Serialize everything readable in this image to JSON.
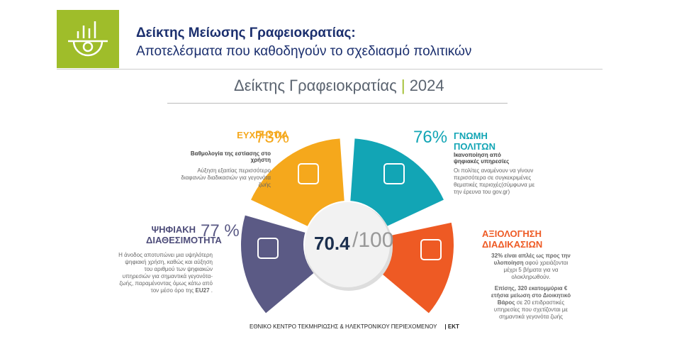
{
  "header": {
    "title": "Δείκτης Μείωσης Γραφειοκρατίας:",
    "subtitle": "Αποτελέσματα που καθοδηγούν το σχεδιασμό πολιτικών"
  },
  "infographic": {
    "title": "Δείκτης Γραφειοκρατίας",
    "separator": "|",
    "year": "2024",
    "score": "70.4",
    "scale": "/100",
    "segments": [
      {
        "name": "ΕΥΧΡΗΣΤΙΑ",
        "percent": "73%",
        "subtitle": "Βαθμολογία της εστίασης στο χρήστη",
        "note": "Αύξηση εξαιτίας περισσότερο διαφανών διαδικασιών για γεγονότα ζωής"
      },
      {
        "name": "ΓΝΩΜΗ ΠΟΛΙΤΩΝ",
        "percent": "76%",
        "subtitle": "Ικανοποίηση από ψηφιακές υπηρεσίες",
        "note": "Οι πολίτες αναμένουν να γίνουν περισσότερα σε συγκεκριμένες θεματικές περιοχές(σύμφωνα με την έρευνα του gov.gr)"
      },
      {
        "name": "ΨΗΦΙΑΚΗ ΔΙΑΘΕΣΙΜΟΤΗΤΑ",
        "percent": "77 %",
        "note": "Η άνοδος αποτυπώνει μια υψηλότερη ψηφιακή χρήση, καθώς και αύξηση του αριθμού των ψηφιακών υπηρεσιών για σημαντικά γεγονότα-ζωής, παραμένοντας όμως κάτω από τον μέσο όρο της",
        "note_bold": "EU27",
        "note_end": "."
      },
      {
        "name": "ΑΞΙΟΛΟΓΗΣΗ ΔΙΑΔΙΚΑΣΙΩΝ",
        "highlight1": "32% είναι απλές ως προς την υλοποίηση",
        "note1": "αφού χρειάζονται μέχρι 5 βήματα για να ολοκληρωθούν.",
        "highlight2": "Επίσης, 320 εκατομμύρια € ετήσια μείωση στο Διοικητικό Βάρος",
        "note2": "σε 20 επιδραστικές υπηρεσίες που σχετίζονται με σημαντικά γεγονότα ζωής"
      }
    ]
  },
  "footer": {
    "organization": "ΕΘΝΙΚΟ ΚΕΝΤΡΟ ΤΕΚΜΗΡΙΩΣΗΣ & ΗΛΕΚΤΡΟΝΙΚΟΥ ΠΕΡΙΕΧΟΜΕΝΟΥ",
    "brand": "| ΕΚΤ"
  }
}
